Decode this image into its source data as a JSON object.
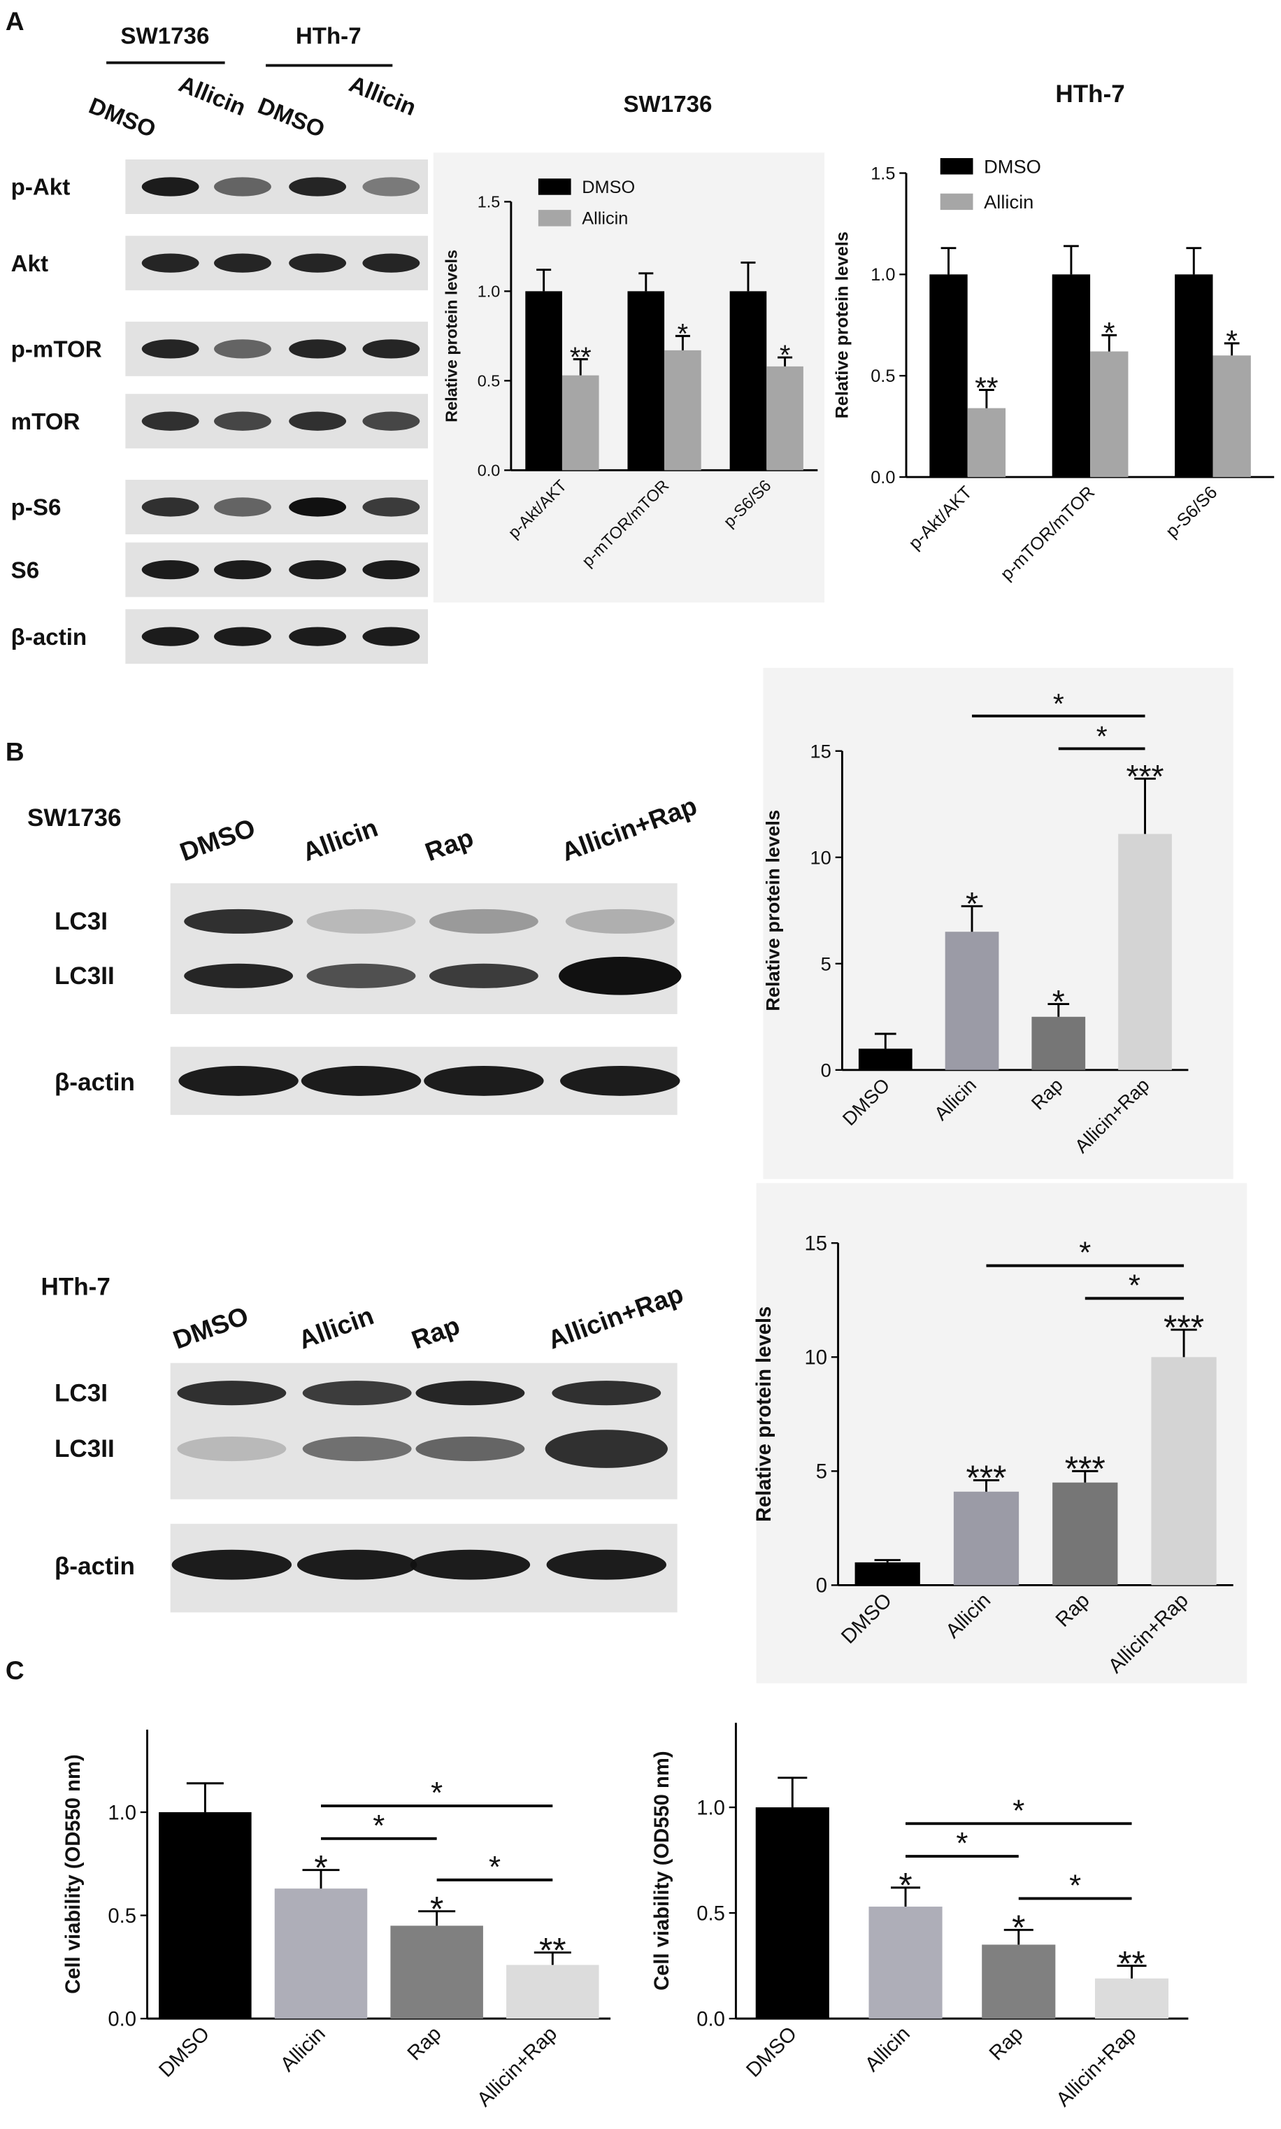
{
  "panel_labels": [
    "A",
    "B",
    "C"
  ],
  "blots": [
    {
      "groups": [
        "SW1736",
        "HTh-7"
      ],
      "lanes": [
        "DMSO",
        "Allicin",
        "DMSO",
        "Allicin"
      ],
      "rows": [
        "p-Akt",
        "Akt",
        "p-mTOR",
        "mTOR",
        "p-S6",
        "S6",
        "β-actin"
      ]
    },
    {
      "cell_line": "SW1736",
      "lanes": [
        "DMSO",
        "Allicin",
        "Rap",
        "Allicin+Rap"
      ],
      "rows": [
        "LC3I",
        "LC3II",
        "β-actin"
      ]
    },
    {
      "cell_line": "HTh-7",
      "lanes": [
        "DMSO",
        "Allicin",
        "Rap",
        "Allicin+Rap"
      ],
      "rows": [
        "LC3I",
        "LC3II",
        "β-actin"
      ]
    }
  ],
  "chart_data": [
    {
      "type": "bar",
      "title": "SW1736",
      "ylabel": "Relative protein levels",
      "categories": [
        "p-Akt/AKT",
        "p-mTOR/mTOR",
        "p-S6/S6"
      ],
      "series": [
        {
          "name": "DMSO",
          "color": "#000000",
          "values": [
            1,
            1,
            1
          ],
          "errors": [
            0.12,
            0.1,
            0.16
          ]
        },
        {
          "name": "Allicin",
          "color": "#a6a6a6",
          "values": [
            0.53,
            0.67,
            0.58
          ],
          "errors": [
            0.09,
            0.08,
            0.05
          ],
          "stars": [
            "**",
            "*",
            "*"
          ]
        }
      ],
      "ylim": [
        0,
        1.5
      ],
      "yticks": [
        {
          "value": 0,
          "label": "0.0"
        },
        0.5,
        {
          "value": 1,
          "label": "1.0"
        },
        1.5
      ],
      "legend": "upper left"
    },
    {
      "type": "bar",
      "title": "HTh-7",
      "ylabel": "Relative protein levels",
      "categories": [
        "p-Akt/AKT",
        "p-mTOR/mTOR",
        "p-S6/S6"
      ],
      "series": [
        {
          "name": "DMSO",
          "color": "#000000",
          "values": [
            1,
            1,
            1
          ],
          "errors": [
            0.13,
            0.14,
            0.13
          ]
        },
        {
          "name": "Allicin",
          "color": "#a6a6a6",
          "values": [
            0.34,
            0.62,
            0.6
          ],
          "errors": [
            0.09,
            0.08,
            0.06
          ],
          "stars": [
            "**",
            "*",
            "*"
          ]
        }
      ],
      "ylim": [
        0,
        1.5
      ],
      "yticks": [
        {
          "value": 0,
          "label": "0.0"
        },
        0.5,
        {
          "value": 1,
          "label": "1.0"
        },
        1.5
      ],
      "legend": "upper left"
    },
    {
      "type": "bar",
      "ylabel": "Relative protein levels",
      "categories": [
        "DMSO",
        "Allicin",
        "Rap",
        "Allicin+Rap"
      ],
      "values": [
        1,
        6.5,
        2.5,
        11.1
      ],
      "errors": [
        0.7,
        1.2,
        0.6,
        2.6
      ],
      "stars": [
        null,
        "*",
        "*",
        "***"
      ],
      "colors": [
        "#000000",
        "#9b9ba6",
        "#767676",
        "#d4d4d4"
      ],
      "brackets": [
        {
          "between": [
            "Rap",
            "Allicin+Rap"
          ],
          "label": "*"
        },
        {
          "between": [
            "Allicin",
            "Allicin+Rap"
          ],
          "label": "*"
        }
      ],
      "ylim": [
        0,
        15
      ],
      "yticks": [
        0,
        5,
        10,
        15
      ]
    },
    {
      "type": "bar",
      "ylabel": "Relative protein levels",
      "categories": [
        "DMSO",
        "Allicin",
        "Rap",
        "Allicin+Rap"
      ],
      "values": [
        1,
        4.1,
        4.5,
        10
      ],
      "errors": [
        0.1,
        0.5,
        0.5,
        1.2
      ],
      "stars": [
        null,
        "***",
        "***",
        "***"
      ],
      "colors": [
        "#000000",
        "#9b9ba6",
        "#767676",
        "#d4d4d4"
      ],
      "brackets": [
        {
          "between": [
            "Rap",
            "Allicin+Rap"
          ],
          "label": "*"
        },
        {
          "between": [
            "Allicin",
            "Allicin+Rap"
          ],
          "label": "*"
        }
      ],
      "ylim": [
        0,
        15
      ],
      "yticks": [
        0,
        5,
        10,
        15
      ]
    },
    {
      "type": "bar",
      "ylabel": "Cell viability (OD550 nm)",
      "categories": [
        "DMSO",
        "Allicin",
        "Rap",
        "Allicin+Rap"
      ],
      "values": [
        1,
        0.63,
        0.45,
        0.26
      ],
      "errors": [
        0.14,
        0.09,
        0.07,
        0.06
      ],
      "stars": [
        null,
        "*",
        "*",
        "**"
      ],
      "colors": [
        "#000000",
        "#aeaeb8",
        "#808080",
        "#dcdcdc"
      ],
      "brackets": [
        {
          "between": [
            "Rap",
            "Allicin+Rap"
          ],
          "label": "*"
        },
        {
          "between": [
            "Allicin",
            "Rap"
          ],
          "label": "*"
        },
        {
          "between": [
            "Allicin",
            "Allicin+Rap"
          ],
          "label": "*"
        }
      ],
      "ylim": [
        0,
        1.4
      ],
      "yticks": [
        {
          "value": 0,
          "label": "0.0"
        },
        0.5,
        {
          "value": 1,
          "label": "1.0"
        }
      ]
    },
    {
      "type": "bar",
      "ylabel": "Cell viability (OD550 nm)",
      "categories": [
        "DMSO",
        "Allicin",
        "Rap",
        "Allicin+Rap"
      ],
      "values": [
        1,
        0.53,
        0.35,
        0.19
      ],
      "errors": [
        0.14,
        0.09,
        0.07,
        0.06
      ],
      "stars": [
        null,
        "*",
        "*",
        "**"
      ],
      "colors": [
        "#000000",
        "#aeaeb8",
        "#808080",
        "#dcdcdc"
      ],
      "brackets": [
        {
          "between": [
            "Rap",
            "Allicin+Rap"
          ],
          "label": "*"
        },
        {
          "between": [
            "Allicin",
            "Rap"
          ],
          "label": "*"
        },
        {
          "between": [
            "Allicin",
            "Allicin+Rap"
          ],
          "label": "*"
        }
      ],
      "ylim": [
        0,
        1.4
      ],
      "yticks": [
        {
          "value": 0,
          "label": "0.0"
        },
        0.5,
        {
          "value": 1,
          "label": "1.0"
        }
      ]
    }
  ]
}
